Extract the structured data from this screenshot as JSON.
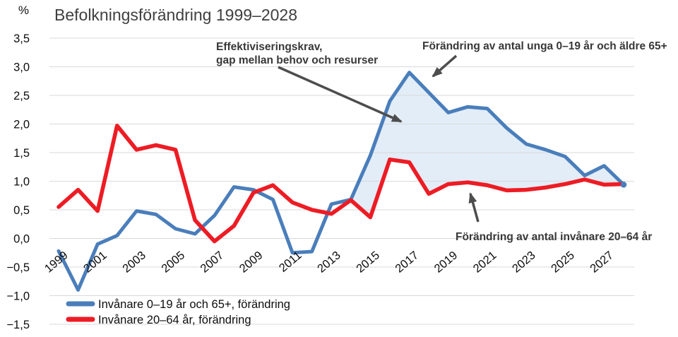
{
  "chart_data": {
    "type": "line",
    "title": "Befolkningsförändring 1999–2028",
    "y_unit_label": "%",
    "ylim": [
      -1.5,
      3.5
    ],
    "y_tick_step": 0.5,
    "y_tick_labels": [
      "3,5",
      "3,0",
      "2,5",
      "2,0",
      "1,5",
      "1,0",
      "0,5",
      "0,0",
      "−0,5",
      "−1,0",
      "−1,5"
    ],
    "x_years": [
      1999,
      2000,
      2001,
      2002,
      2003,
      2004,
      2005,
      2006,
      2007,
      2008,
      2009,
      2010,
      2011,
      2012,
      2013,
      2014,
      2015,
      2016,
      2017,
      2018,
      2019,
      2020,
      2021,
      2022,
      2023,
      2024,
      2025,
      2026,
      2027,
      2028
    ],
    "x_tick_labels": [
      "1999",
      "2001",
      "2003",
      "2005",
      "2007",
      "2009",
      "2011",
      "2013",
      "2015",
      "2017",
      "2019",
      "2021",
      "2023",
      "2025",
      "2027"
    ],
    "grid": true,
    "legend_position": "bottom-left",
    "series": [
      {
        "name": "Invånare 0–19 år och 65+, förändring",
        "color": "#4a7ebb",
        "values": [
          -0.22,
          -0.9,
          -0.1,
          0.05,
          0.48,
          0.42,
          0.17,
          0.08,
          0.4,
          0.9,
          0.85,
          0.68,
          -0.25,
          -0.23,
          0.6,
          0.68,
          1.45,
          2.4,
          2.9,
          2.55,
          2.2,
          2.3,
          2.27,
          1.93,
          1.65,
          1.55,
          1.43,
          1.1,
          1.27,
          0.94
        ]
      },
      {
        "name": "Invånare 20–64 år, förändring",
        "color": "#ed1c24",
        "values": [
          0.55,
          0.85,
          0.48,
          1.97,
          1.55,
          1.63,
          1.55,
          0.32,
          -0.05,
          0.22,
          0.8,
          0.93,
          0.63,
          0.5,
          0.43,
          0.67,
          0.37,
          1.38,
          1.33,
          0.78,
          0.95,
          0.98,
          0.93,
          0.84,
          0.85,
          0.89,
          0.95,
          1.03,
          0.94,
          0.95
        ]
      }
    ],
    "fill_between": {
      "upper_series": 0,
      "lower_series": 1,
      "from_year": 2014,
      "to_year": 2028,
      "color": "#e2edf8"
    },
    "annotations": [
      {
        "lines": [
          "Effektiviseringskrav,",
          "gap mellan behov och resurser"
        ]
      },
      {
        "lines": [
          "Förändring av antal unga 0–19 år och äldre 65+"
        ]
      },
      {
        "lines": [
          "Förändring av antal invånare 20–64 år"
        ]
      }
    ],
    "colors": {
      "background": "#ffffff",
      "gridline": "#d9d9d9",
      "title": "#3f3f3f",
      "annotation_text": "#383838",
      "arrow": "#4d4d4d",
      "tick_label": "#0d0d0d"
    }
  }
}
